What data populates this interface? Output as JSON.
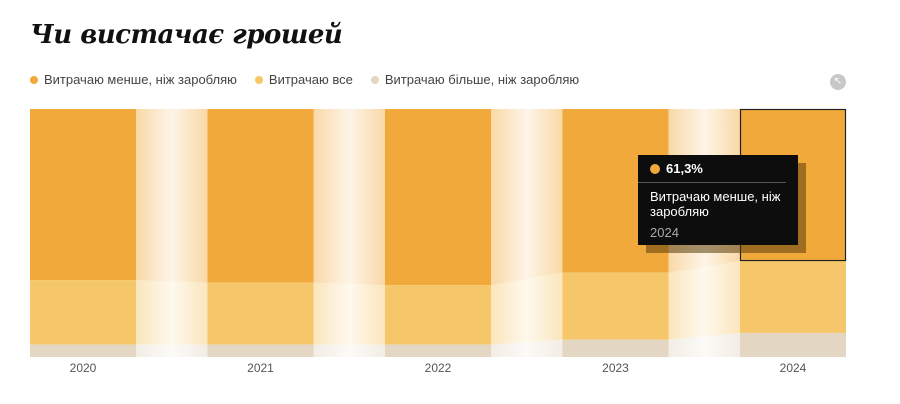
{
  "title": "Чи вистачає грошей",
  "legend": [
    {
      "label": "Витрачаю менше, ніж заробляю",
      "color": "#f2a93b"
    },
    {
      "label": "Витрачаю все",
      "color": "#f5c76a"
    },
    {
      "label": "Витрачаю більше, ніж заробляю",
      "color": "#e3d7c4"
    }
  ],
  "reset_icon": "cursor-reset-icon",
  "tooltip": {
    "value": "61,3%",
    "series": "Витрачаю менше, ніж заробляю",
    "year": "2024"
  },
  "chart_data": {
    "type": "bar",
    "stacked": true,
    "normalized": true,
    "categories": [
      "2020",
      "2021",
      "2022",
      "2023",
      "2024"
    ],
    "series": [
      {
        "name": "Витрачаю менше, ніж заробляю",
        "color": "#f2a93b",
        "values": [
          69,
          70,
          71,
          66,
          61.3
        ]
      },
      {
        "name": "Витрачаю все",
        "color": "#f5c76a",
        "values": [
          26,
          25,
          24,
          27,
          29
        ]
      },
      {
        "name": "Витрачаю більше, ніж заробляю",
        "color": "#e3d7c4",
        "values": [
          5,
          5,
          5,
          7,
          9.7
        ]
      }
    ],
    "ylim": [
      0,
      100
    ],
    "grid": false,
    "legend_position": "top-left",
    "highlighted": {
      "category": "2024",
      "series": "Витрачаю менше, ніж заробляю"
    }
  }
}
